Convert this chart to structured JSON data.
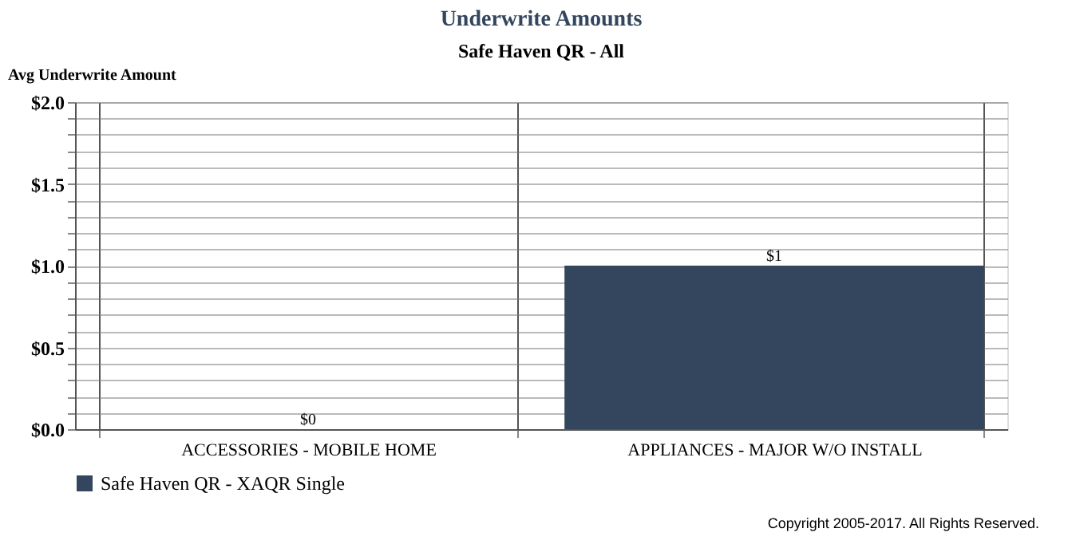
{
  "chart_data": {
    "type": "bar",
    "title": "Underwrite Amounts",
    "subtitle": "Safe Haven QR - All",
    "ylabel": "Avg Underwrite Amount",
    "categories": [
      "ACCESSORIES - MOBILE HOME",
      "APPLIANCES - MAJOR W/O INSTALL"
    ],
    "series": [
      {
        "name": "Safe Haven QR - XAQR Single",
        "color": "#34465e",
        "values": [
          0,
          1
        ],
        "value_labels": [
          "$0",
          "$1"
        ]
      }
    ],
    "ylim": [
      0,
      2
    ],
    "yticks": [
      {
        "value": 0,
        "label": "$0.0"
      },
      {
        "value": 0.1,
        "label": null
      },
      {
        "value": 0.2,
        "label": null
      },
      {
        "value": 0.3,
        "label": null
      },
      {
        "value": 0.4,
        "label": null
      },
      {
        "value": 0.5,
        "label": "$0.5"
      },
      {
        "value": 0.6,
        "label": null
      },
      {
        "value": 0.7,
        "label": null
      },
      {
        "value": 0.8,
        "label": null
      },
      {
        "value": 0.9,
        "label": null
      },
      {
        "value": 1.0,
        "label": "$1.0"
      },
      {
        "value": 1.1,
        "label": null
      },
      {
        "value": 1.2,
        "label": null
      },
      {
        "value": 1.3,
        "label": null
      },
      {
        "value": 1.4,
        "label": null
      },
      {
        "value": 1.5,
        "label": "$1.5"
      },
      {
        "value": 1.6,
        "label": null
      },
      {
        "value": 1.7,
        "label": null
      },
      {
        "value": 1.8,
        "label": null
      },
      {
        "value": 1.9,
        "label": null
      },
      {
        "value": 2.0,
        "label": "$2.0"
      }
    ],
    "grid": true,
    "legend": "bottom left",
    "annotations": [
      "Copyright 2005-2017. All Rights Reserved."
    ]
  }
}
